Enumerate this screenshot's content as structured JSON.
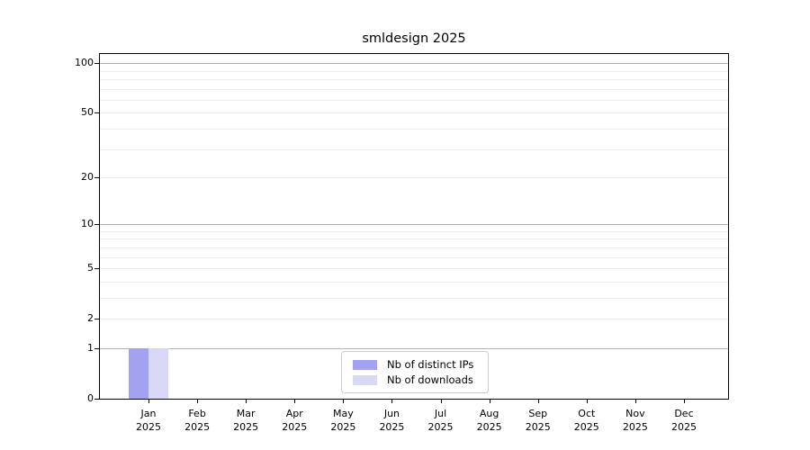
{
  "chart_data": {
    "type": "bar",
    "title": "smldesign 2025",
    "categories": [
      {
        "month": "Jan",
        "year": "2025"
      },
      {
        "month": "Feb",
        "year": "2025"
      },
      {
        "month": "Mar",
        "year": "2025"
      },
      {
        "month": "Apr",
        "year": "2025"
      },
      {
        "month": "May",
        "year": "2025"
      },
      {
        "month": "Jun",
        "year": "2025"
      },
      {
        "month": "Jul",
        "year": "2025"
      },
      {
        "month": "Aug",
        "year": "2025"
      },
      {
        "month": "Sep",
        "year": "2025"
      },
      {
        "month": "Oct",
        "year": "2025"
      },
      {
        "month": "Nov",
        "year": "2025"
      },
      {
        "month": "Dec",
        "year": "2025"
      }
    ],
    "series": [
      {
        "name": "Nb of distinct IPs",
        "color": "#a2a2f0",
        "values": [
          1,
          0,
          0,
          0,
          0,
          0,
          0,
          0,
          0,
          0,
          0,
          0
        ]
      },
      {
        "name": "Nb of downloads",
        "color": "#d9d9f7",
        "values": [
          1,
          0,
          0,
          0,
          0,
          0,
          0,
          0,
          0,
          0,
          0,
          0
        ]
      }
    ],
    "yaxis": {
      "scale": "log1p",
      "ticks": [
        {
          "label": "100",
          "value": 100
        },
        {
          "label": "50",
          "value": 50
        },
        {
          "label": "20",
          "value": 20
        },
        {
          "label": "10",
          "value": 10
        },
        {
          "label": "5",
          "value": 5
        },
        {
          "label": "2",
          "value": 2
        },
        {
          "label": "1",
          "value": 1
        },
        {
          "label": "0",
          "value": 0
        }
      ],
      "major_grid_values": [
        1,
        10,
        100
      ],
      "minor_grid_values": [
        2,
        3,
        4,
        5,
        6,
        7,
        8,
        9,
        20,
        30,
        40,
        50,
        60,
        70,
        80,
        90
      ],
      "ylim": [
        0,
        113
      ]
    },
    "legend": {
      "position": "lower center"
    },
    "colors": {
      "major_grid": "#b5b5b5",
      "minor_grid": "#ebebeb",
      "spine": "#000000",
      "background": "#ffffff"
    },
    "grid": "horizontal"
  }
}
